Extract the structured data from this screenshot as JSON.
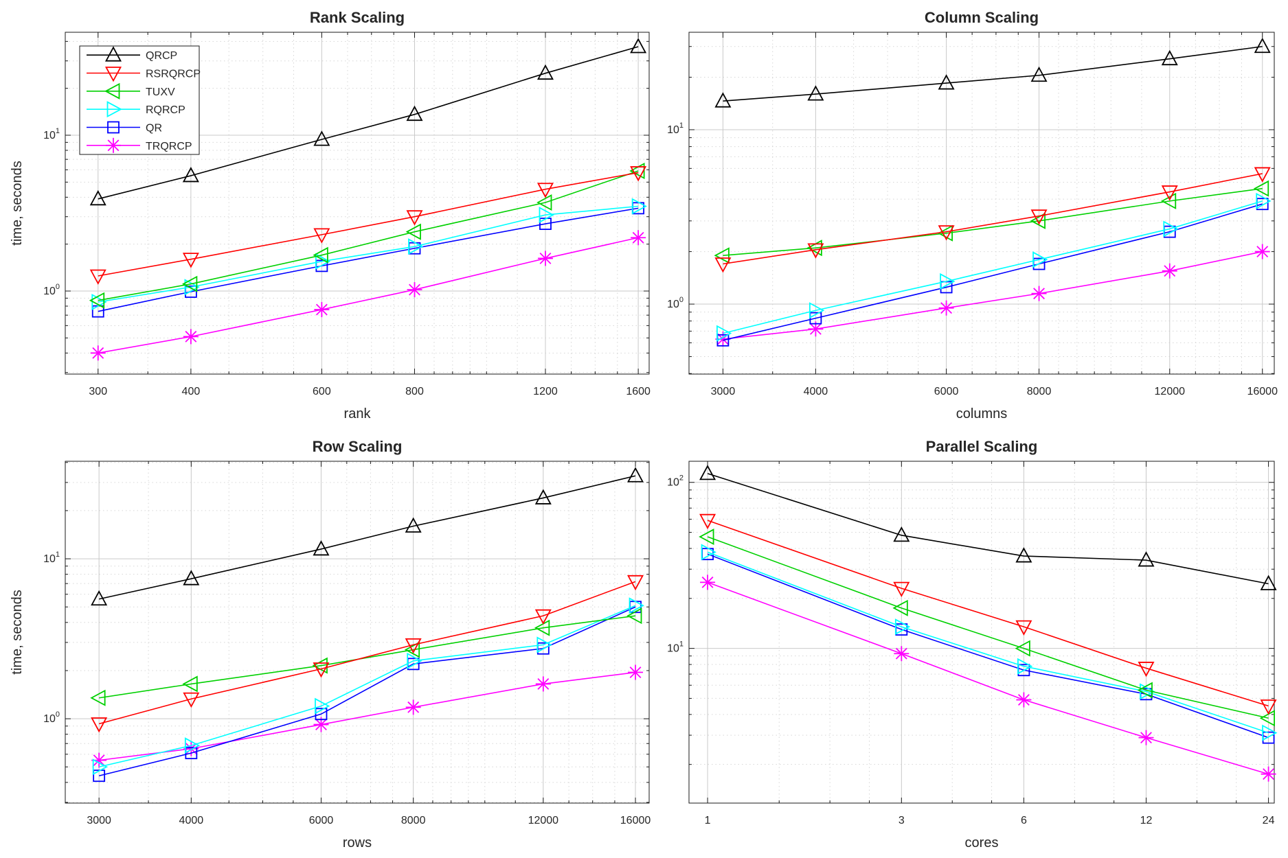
{
  "figure": {
    "background": "#ffffff"
  },
  "styles": {
    "grid_major": "#c9c9c9",
    "grid_minor": "#d6d6d6",
    "axis_color": "#1a1a1a",
    "text_color": "#262626"
  },
  "legend": {
    "location": "rank-scaling-plot-top-left",
    "entries": [
      {
        "label": "QRCP",
        "marker": "triangle-up",
        "color": "#000000"
      },
      {
        "label": "RSRQRCP",
        "marker": "triangle-down",
        "color": "#ff0000"
      },
      {
        "label": "TUXV",
        "marker": "triangle-left",
        "color": "#00d000"
      },
      {
        "label": "RQRCP",
        "marker": "triangle-right",
        "color": "#00ffff"
      },
      {
        "label": "QR",
        "marker": "square",
        "color": "#0000ff"
      },
      {
        "label": "TRQRCP",
        "marker": "asterisk",
        "color": "#ff00ff"
      }
    ]
  },
  "chart_data": [
    {
      "id": "rank-scaling",
      "type": "line",
      "title": "Rank Scaling",
      "xlabel": "rank",
      "ylabel": "time, seconds",
      "x_scale": "log",
      "y_scale": "log",
      "grid": true,
      "legend": true,
      "x": [
        300,
        400,
        600,
        800,
        1200,
        1600
      ],
      "x_tick_labels": [
        "300",
        "400",
        "600",
        "800",
        "1200",
        "1600"
      ],
      "x_minor": [
        350,
        450,
        500,
        550,
        650,
        700,
        750,
        850,
        900,
        950,
        1000,
        1100,
        1300,
        1400,
        1500
      ],
      "xlim": [
        271,
        1655
      ],
      "ylim": [
        0.293,
        45.8
      ],
      "y_ticks": [
        {
          "exp": 1,
          "base": "10",
          "sup": "1"
        },
        {
          "exp": 0,
          "base": "10",
          "sup": "0"
        }
      ],
      "series": [
        {
          "name": "QRCP",
          "values": [
            3.9,
            5.5,
            9.4,
            13.6,
            25,
            37
          ]
        },
        {
          "name": "RSRQRCP",
          "values": [
            1.25,
            1.6,
            2.3,
            3.0,
            4.5,
            5.75
          ]
        },
        {
          "name": "TUXV",
          "values": [
            0.87,
            1.11,
            1.7,
            2.4,
            3.7,
            5.9
          ]
        },
        {
          "name": "RQRCP",
          "values": [
            0.85,
            1.06,
            1.55,
            1.93,
            3.08,
            3.5
          ]
        },
        {
          "name": "QR",
          "values": [
            0.74,
            0.99,
            1.45,
            1.88,
            2.7,
            3.4
          ]
        },
        {
          "name": "TRQRCP",
          "values": [
            0.4,
            0.51,
            0.76,
            1.02,
            1.62,
            2.2
          ]
        }
      ]
    },
    {
      "id": "column-scaling",
      "type": "line",
      "title": "Column Scaling",
      "xlabel": "columns",
      "ylabel": "",
      "x_scale": "log",
      "y_scale": "log",
      "grid": true,
      "legend": false,
      "x": [
        3000,
        4000,
        6000,
        8000,
        12000,
        16000
      ],
      "x_tick_labels": [
        "3000",
        "4000",
        "6000",
        "8000",
        "12000",
        "16000"
      ],
      "x_minor": [
        3500,
        4500,
        5000,
        5500,
        6500,
        7000,
        7500,
        8500,
        9000,
        9500,
        10000,
        11000,
        13000,
        14000,
        15000
      ],
      "xlim": [
        2700,
        16600
      ],
      "ylim": [
        0.397,
        36.2
      ],
      "y_ticks": [
        {
          "exp": 1,
          "base": "10",
          "sup": "1"
        },
        {
          "exp": 0,
          "base": "10",
          "sup": "0"
        }
      ],
      "series": [
        {
          "name": "QRCP",
          "values": [
            14.6,
            16,
            18.5,
            20.5,
            25.5,
            30
          ]
        },
        {
          "name": "RSRQRCP",
          "values": [
            1.7,
            2.05,
            2.6,
            3.2,
            4.4,
            5.6
          ]
        },
        {
          "name": "TUXV",
          "values": [
            1.9,
            2.1,
            2.55,
            3.0,
            3.9,
            4.6
          ]
        },
        {
          "name": "RQRCP",
          "values": [
            0.68,
            0.92,
            1.35,
            1.8,
            2.7,
            3.9
          ]
        },
        {
          "name": "QR",
          "values": [
            0.62,
            0.83,
            1.25,
            1.7,
            2.6,
            3.75
          ]
        },
        {
          "name": "TRQRCP",
          "values": [
            0.63,
            0.72,
            0.95,
            1.15,
            1.55,
            2.0
          ]
        }
      ]
    },
    {
      "id": "row-scaling",
      "type": "line",
      "title": "Row Scaling",
      "xlabel": "rows",
      "ylabel": "time, seconds",
      "x_scale": "log",
      "y_scale": "log",
      "grid": true,
      "legend": false,
      "x": [
        3000,
        4000,
        6000,
        8000,
        12000,
        16000
      ],
      "x_tick_labels": [
        "3000",
        "4000",
        "6000",
        "8000",
        "12000",
        "16000"
      ],
      "x_minor": [
        3500,
        4500,
        5000,
        5500,
        6500,
        7000,
        7500,
        8500,
        9000,
        9500,
        10000,
        11000,
        13000,
        14000,
        15000
      ],
      "xlim": [
        2700,
        16700
      ],
      "ylim": [
        0.297,
        40.7
      ],
      "y_ticks": [
        {
          "exp": 1,
          "base": "10",
          "sup": "1"
        },
        {
          "exp": 0,
          "base": "10",
          "sup": "0"
        }
      ],
      "series": [
        {
          "name": "QRCP",
          "values": [
            5.6,
            7.5,
            11.5,
            16,
            24,
            33
          ]
        },
        {
          "name": "RSRQRCP",
          "values": [
            0.93,
            1.33,
            2.05,
            2.9,
            4.4,
            7.2
          ]
        },
        {
          "name": "TUXV",
          "values": [
            1.35,
            1.65,
            2.15,
            2.7,
            3.7,
            4.4
          ]
        },
        {
          "name": "RQRCP",
          "values": [
            0.5,
            0.68,
            1.2,
            2.3,
            2.9,
            5.1
          ]
        },
        {
          "name": "QR",
          "values": [
            0.44,
            0.61,
            1.07,
            2.2,
            2.75,
            5.0
          ]
        },
        {
          "name": "TRQRCP",
          "values": [
            0.55,
            0.65,
            0.92,
            1.18,
            1.65,
            1.95
          ]
        }
      ]
    },
    {
      "id": "parallel-scaling",
      "type": "line",
      "title": "Parallel Scaling",
      "xlabel": "cores",
      "ylabel": "",
      "x_scale": "log",
      "y_scale": "log",
      "grid": true,
      "legend": false,
      "x": [
        1,
        3,
        6,
        12,
        24
      ],
      "x_tick_labels": [
        "1",
        "3",
        "6",
        "12",
        "24"
      ],
      "x_minor": [
        1.5,
        2,
        2.5,
        4,
        5,
        8,
        10,
        16,
        20
      ],
      "xlim": [
        0.9,
        24.8
      ],
      "ylim": [
        1.17,
        134
      ],
      "y_ticks": [
        {
          "exp": 2,
          "base": "10",
          "sup": "2"
        },
        {
          "exp": 1,
          "base": "10",
          "sup": "1"
        }
      ],
      "series": [
        {
          "name": "QRCP",
          "values": [
            113,
            48,
            36,
            34,
            24.5
          ]
        },
        {
          "name": "RSRQRCP",
          "values": [
            59,
            23,
            13.5,
            7.6,
            4.5
          ]
        },
        {
          "name": "TUXV",
          "values": [
            47,
            17.5,
            10,
            5.6,
            3.8
          ]
        },
        {
          "name": "RQRCP",
          "values": [
            38,
            13.5,
            7.8,
            5.5,
            3.1
          ]
        },
        {
          "name": "QR",
          "values": [
            37,
            13,
            7.4,
            5.3,
            2.9
          ]
        },
        {
          "name": "TRQRCP",
          "values": [
            25,
            9.3,
            4.9,
            2.9,
            1.75
          ]
        }
      ]
    }
  ]
}
